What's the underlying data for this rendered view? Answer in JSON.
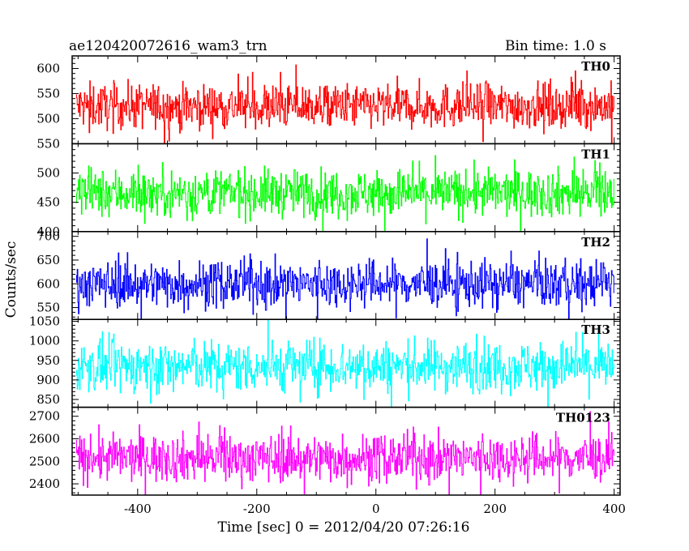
{
  "header": {
    "title": "ae120420072616_wam3_trn",
    "bin_time": "Bin time: 1.0 s"
  },
  "chart_data": {
    "type": "line",
    "xlabel": "Time [sec] 0 = 2012/04/20 07:26:16",
    "ylabel": "Counts/sec",
    "xlim": [
      -510,
      410
    ],
    "x_ticks": [
      -400,
      -200,
      0,
      200,
      400
    ],
    "x_step": 1,
    "x_start": -503,
    "x_end": 400,
    "panels": [
      {
        "name": "TH0",
        "color": "#ff0000",
        "ylim": [
          450,
          625
        ],
        "yticks": [
          500,
          550,
          600
        ],
        "mean": 525,
        "noise": 22,
        "spike": 1.0
      },
      {
        "name": "TH1",
        "color": "#00ff00",
        "ylim": [
          400,
          550
        ],
        "yticks": [
          400,
          450,
          500,
          550
        ],
        "mean": 466,
        "noise": 20,
        "spike": 1.0
      },
      {
        "name": "TH2",
        "color": "#0000ff",
        "ylim": [
          525,
          710
        ],
        "yticks": [
          550,
          600,
          650,
          700
        ],
        "mean": 600,
        "noise": 24,
        "spike": 1.0
      },
      {
        "name": "TH3",
        "color": "#00ffff",
        "ylim": [
          830,
          1055
        ],
        "yticks": [
          850,
          900,
          950,
          1000,
          1050
        ],
        "mean": 935,
        "noise": 32,
        "spike": 1.0
      },
      {
        "name": "TH0123",
        "color": "#ff00ff",
        "ylim": [
          2350,
          2740
        ],
        "yticks": [
          2400,
          2500,
          2600,
          2700
        ],
        "mean": 2515,
        "noise": 52,
        "spike": 1.0
      }
    ]
  }
}
